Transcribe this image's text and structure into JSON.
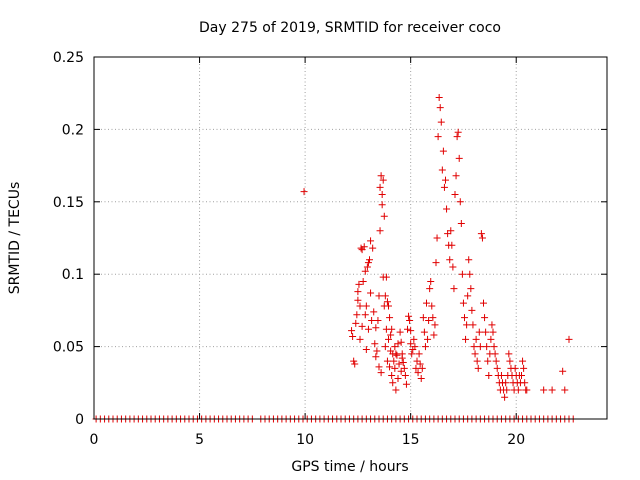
{
  "chart_data": {
    "type": "scatter",
    "title": "Day 275 of 2019, SRMTID for receiver coco",
    "xlabel": "GPS time / hours",
    "ylabel": "SRMTID / TECUs",
    "xlim": [
      0,
      24.3
    ],
    "ylim": [
      0,
      0.25
    ],
    "grid": true,
    "marker": "+",
    "color": "#e00000",
    "x_ticks": [
      0,
      5,
      10,
      15,
      20
    ],
    "x_tick_labels": [
      "0",
      "5",
      "10",
      "15",
      "20"
    ],
    "y_ticks": [
      0,
      0.05,
      0.1,
      0.15,
      0.2,
      0.25
    ],
    "y_tick_labels": [
      "0",
      "0.05",
      "0.1",
      "0.15",
      "0.2",
      "0.25"
    ],
    "baseline_x": [
      0.1,
      0.3,
      0.5,
      0.7,
      0.9,
      1.1,
      1.3,
      1.5,
      1.7,
      1.9,
      2.1,
      2.3,
      2.5,
      2.7,
      2.9,
      3.1,
      3.3,
      3.5,
      3.7,
      3.9,
      4.1,
      4.3,
      4.5,
      4.7,
      4.9,
      5.1,
      5.3,
      5.5,
      5.7,
      5.9,
      6.1,
      6.3,
      6.5,
      6.7,
      6.9,
      7.1,
      7.3,
      7.5,
      7.9,
      8.1,
      8.3,
      8.5,
      8.7,
      8.9,
      9.1,
      9.3,
      9.5,
      9.7,
      9.9,
      10.1,
      10.3,
      10.5,
      10.7,
      10.9,
      11.1,
      11.3,
      11.5,
      11.7,
      11.9,
      12.1,
      12.3,
      12.5,
      12.7,
      12.9,
      13.1,
      13.3,
      13.5,
      13.7,
      13.9,
      14.1,
      14.3,
      14.5,
      14.7,
      14.9,
      15.1,
      15.3,
      15.5,
      15.7,
      15.9,
      16.1,
      16.3,
      16.5,
      16.7,
      16.9,
      17.1,
      17.3,
      17.5,
      17.7,
      17.9,
      18.1,
      18.3,
      18.5,
      18.7,
      18.9,
      19.1,
      19.3,
      19.5,
      19.7,
      19.9,
      20.1,
      20.3,
      20.5,
      20.7,
      20.9,
      21.1,
      21.3,
      21.5,
      21.7,
      21.9,
      22.1,
      22.3,
      22.5,
      22.7
    ],
    "points": [
      [
        9.95,
        0.157
      ],
      [
        12.2,
        0.061
      ],
      [
        12.25,
        0.057
      ],
      [
        12.3,
        0.04
      ],
      [
        12.35,
        0.038
      ],
      [
        12.4,
        0.066
      ],
      [
        12.45,
        0.072
      ],
      [
        12.5,
        0.088
      ],
      [
        12.5,
        0.082
      ],
      [
        12.55,
        0.093
      ],
      [
        12.6,
        0.078
      ],
      [
        12.6,
        0.055
      ],
      [
        12.65,
        0.118
      ],
      [
        12.7,
        0.117
      ],
      [
        12.7,
        0.064
      ],
      [
        12.75,
        0.095
      ],
      [
        12.8,
        0.119
      ],
      [
        12.85,
        0.102
      ],
      [
        12.85,
        0.072
      ],
      [
        12.9,
        0.078
      ],
      [
        12.9,
        0.048
      ],
      [
        12.95,
        0.105
      ],
      [
        13.0,
        0.108
      ],
      [
        13.0,
        0.062
      ],
      [
        13.05,
        0.11
      ],
      [
        13.1,
        0.123
      ],
      [
        13.1,
        0.087
      ],
      [
        13.15,
        0.068
      ],
      [
        13.2,
        0.118
      ],
      [
        13.25,
        0.074
      ],
      [
        13.3,
        0.052
      ],
      [
        13.35,
        0.063
      ],
      [
        13.35,
        0.043
      ],
      [
        13.4,
        0.047
      ],
      [
        13.45,
        0.068
      ],
      [
        13.5,
        0.085
      ],
      [
        13.5,
        0.036
      ],
      [
        13.55,
        0.16
      ],
      [
        13.55,
        0.13
      ],
      [
        13.6,
        0.168
      ],
      [
        13.6,
        0.032
      ],
      [
        13.65,
        0.155
      ],
      [
        13.65,
        0.148
      ],
      [
        13.7,
        0.165
      ],
      [
        13.7,
        0.098
      ],
      [
        13.75,
        0.14
      ],
      [
        13.75,
        0.078
      ],
      [
        13.8,
        0.085
      ],
      [
        13.8,
        0.05
      ],
      [
        13.85,
        0.098
      ],
      [
        13.85,
        0.062
      ],
      [
        13.9,
        0.081
      ],
      [
        13.9,
        0.04
      ],
      [
        13.95,
        0.078
      ],
      [
        13.95,
        0.055
      ],
      [
        14.0,
        0.07
      ],
      [
        14.0,
        0.036
      ],
      [
        14.05,
        0.058
      ],
      [
        14.05,
        0.047
      ],
      [
        14.1,
        0.062
      ],
      [
        14.1,
        0.03
      ],
      [
        14.15,
        0.045
      ],
      [
        14.15,
        0.025
      ],
      [
        14.2,
        0.04
      ],
      [
        14.25,
        0.05
      ],
      [
        14.25,
        0.035
      ],
      [
        14.3,
        0.045
      ],
      [
        14.3,
        0.02
      ],
      [
        14.35,
        0.044
      ],
      [
        14.4,
        0.052
      ],
      [
        14.4,
        0.028
      ],
      [
        14.45,
        0.038
      ],
      [
        14.5,
        0.06
      ],
      [
        14.55,
        0.053
      ],
      [
        14.55,
        0.033
      ],
      [
        14.6,
        0.045
      ],
      [
        14.6,
        0.042
      ],
      [
        14.65,
        0.039
      ],
      [
        14.7,
        0.035
      ],
      [
        14.75,
        0.03
      ],
      [
        14.8,
        0.024
      ],
      [
        14.85,
        0.062
      ],
      [
        14.9,
        0.071
      ],
      [
        14.95,
        0.068
      ],
      [
        15.0,
        0.061
      ],
      [
        15.0,
        0.052
      ],
      [
        15.05,
        0.045
      ],
      [
        15.1,
        0.048
      ],
      [
        15.15,
        0.055
      ],
      [
        15.2,
        0.05
      ],
      [
        15.25,
        0.035
      ],
      [
        15.3,
        0.04
      ],
      [
        15.35,
        0.032
      ],
      [
        15.4,
        0.045
      ],
      [
        15.45,
        0.038
      ],
      [
        15.5,
        0.028
      ],
      [
        15.55,
        0.035
      ],
      [
        15.6,
        0.07
      ],
      [
        15.65,
        0.06
      ],
      [
        15.7,
        0.05
      ],
      [
        15.75,
        0.08
      ],
      [
        15.8,
        0.055
      ],
      [
        15.85,
        0.068
      ],
      [
        15.9,
        0.09
      ],
      [
        15.95,
        0.095
      ],
      [
        16.0,
        0.078
      ],
      [
        16.05,
        0.07
      ],
      [
        16.1,
        0.058
      ],
      [
        16.15,
        0.065
      ],
      [
        16.2,
        0.108
      ],
      [
        16.25,
        0.125
      ],
      [
        16.3,
        0.195
      ],
      [
        16.35,
        0.222
      ],
      [
        16.4,
        0.215
      ],
      [
        16.45,
        0.205
      ],
      [
        16.5,
        0.172
      ],
      [
        16.55,
        0.185
      ],
      [
        16.6,
        0.16
      ],
      [
        16.65,
        0.165
      ],
      [
        16.7,
        0.145
      ],
      [
        16.75,
        0.128
      ],
      [
        16.8,
        0.12
      ],
      [
        16.85,
        0.11
      ],
      [
        16.9,
        0.13
      ],
      [
        16.95,
        0.12
      ],
      [
        17.0,
        0.105
      ],
      [
        17.05,
        0.09
      ],
      [
        17.1,
        0.155
      ],
      [
        17.15,
        0.168
      ],
      [
        17.2,
        0.195
      ],
      [
        17.25,
        0.198
      ],
      [
        17.3,
        0.18
      ],
      [
        17.35,
        0.15
      ],
      [
        17.4,
        0.135
      ],
      [
        17.45,
        0.1
      ],
      [
        17.5,
        0.08
      ],
      [
        17.55,
        0.07
      ],
      [
        17.6,
        0.055
      ],
      [
        17.65,
        0.065
      ],
      [
        17.7,
        0.085
      ],
      [
        17.75,
        0.11
      ],
      [
        17.8,
        0.1
      ],
      [
        17.85,
        0.09
      ],
      [
        17.9,
        0.075
      ],
      [
        17.95,
        0.065
      ],
      [
        18.0,
        0.05
      ],
      [
        18.05,
        0.045
      ],
      [
        18.1,
        0.055
      ],
      [
        18.15,
        0.04
      ],
      [
        18.2,
        0.035
      ],
      [
        18.25,
        0.06
      ],
      [
        18.3,
        0.05
      ],
      [
        18.35,
        0.128
      ],
      [
        18.4,
        0.125
      ],
      [
        18.45,
        0.08
      ],
      [
        18.5,
        0.07
      ],
      [
        18.55,
        0.06
      ],
      [
        18.6,
        0.05
      ],
      [
        18.65,
        0.04
      ],
      [
        18.7,
        0.03
      ],
      [
        18.75,
        0.045
      ],
      [
        18.8,
        0.055
      ],
      [
        18.85,
        0.065
      ],
      [
        18.9,
        0.06
      ],
      [
        18.95,
        0.05
      ],
      [
        19.0,
        0.045
      ],
      [
        19.05,
        0.04
      ],
      [
        19.1,
        0.035
      ],
      [
        19.15,
        0.03
      ],
      [
        19.2,
        0.025
      ],
      [
        19.25,
        0.02
      ],
      [
        19.3,
        0.03
      ],
      [
        19.35,
        0.025
      ],
      [
        19.4,
        0.02
      ],
      [
        19.45,
        0.015
      ],
      [
        19.5,
        0.025
      ],
      [
        19.55,
        0.02
      ],
      [
        19.6,
        0.03
      ],
      [
        19.65,
        0.045
      ],
      [
        19.7,
        0.04
      ],
      [
        19.75,
        0.035
      ],
      [
        19.8,
        0.03
      ],
      [
        19.85,
        0.025
      ],
      [
        19.9,
        0.02
      ],
      [
        19.95,
        0.035
      ],
      [
        20.0,
        0.03
      ],
      [
        20.05,
        0.025
      ],
      [
        20.1,
        0.02
      ],
      [
        20.15,
        0.03
      ],
      [
        20.2,
        0.025
      ],
      [
        20.25,
        0.03
      ],
      [
        20.3,
        0.04
      ],
      [
        20.35,
        0.035
      ],
      [
        20.4,
        0.025
      ],
      [
        20.45,
        0.02
      ],
      [
        20.5,
        0.02
      ],
      [
        21.3,
        0.02
      ],
      [
        21.7,
        0.02
      ],
      [
        22.2,
        0.033
      ],
      [
        22.3,
        0.02
      ],
      [
        22.5,
        0.055
      ]
    ]
  }
}
